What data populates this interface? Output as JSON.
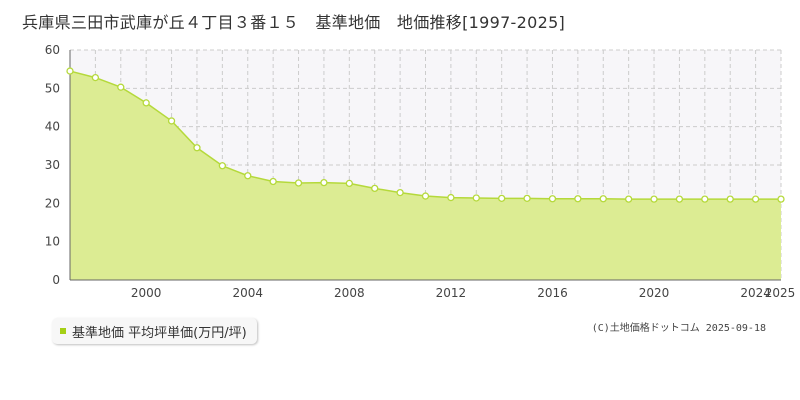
{
  "title": "兵庫県三田市武庫が丘４丁目３番１５　基準地価　地価推移[1997-2025]",
  "legend_label": "基準地価 平均坪単価(万円/坪)",
  "credit": "(C)土地価格ドットコム 2025-09-18",
  "colors": {
    "fill": "#dcec93",
    "line": "#b5d93b",
    "marker_stroke": "#b5d93b",
    "marker_fill": "#ffffff",
    "grid": "#cccccc",
    "plot_bg_upper": "#f7f6f9",
    "legend_swatch": "#a5d016"
  },
  "chart_data": {
    "type": "area",
    "x": [
      1997,
      1998,
      1999,
      2000,
      2001,
      2002,
      2003,
      2004,
      2005,
      2006,
      2007,
      2008,
      2009,
      2010,
      2011,
      2012,
      2013,
      2014,
      2015,
      2016,
      2017,
      2018,
      2019,
      2020,
      2021,
      2022,
      2023,
      2024,
      2025
    ],
    "series": [
      {
        "name": "基準地価 平均坪単価(万円/坪)",
        "values": [
          54.5,
          52.8,
          50.3,
          46.2,
          41.5,
          34.5,
          29.8,
          27.2,
          25.7,
          25.3,
          25.4,
          25.2,
          23.9,
          22.8,
          21.9,
          21.5,
          21.4,
          21.3,
          21.3,
          21.2,
          21.2,
          21.2,
          21.1,
          21.1,
          21.1,
          21.1,
          21.1,
          21.1,
          21.1
        ]
      }
    ],
    "xticks": [
      "2000",
      "2004",
      "2008",
      "2012",
      "2016",
      "2020",
      "2024",
      "2025"
    ],
    "xtick_values": [
      2000,
      2004,
      2008,
      2012,
      2016,
      2020,
      2024,
      2025
    ],
    "yticks": [
      "0",
      "10",
      "20",
      "30",
      "40",
      "50",
      "60"
    ],
    "ytick_values": [
      0,
      10,
      20,
      30,
      40,
      50,
      60
    ],
    "ylim": [
      0,
      60
    ],
    "xlim": [
      1997,
      2025
    ],
    "xlabel": "",
    "ylabel": "",
    "grid": true,
    "legend_position": "bottom-left"
  }
}
